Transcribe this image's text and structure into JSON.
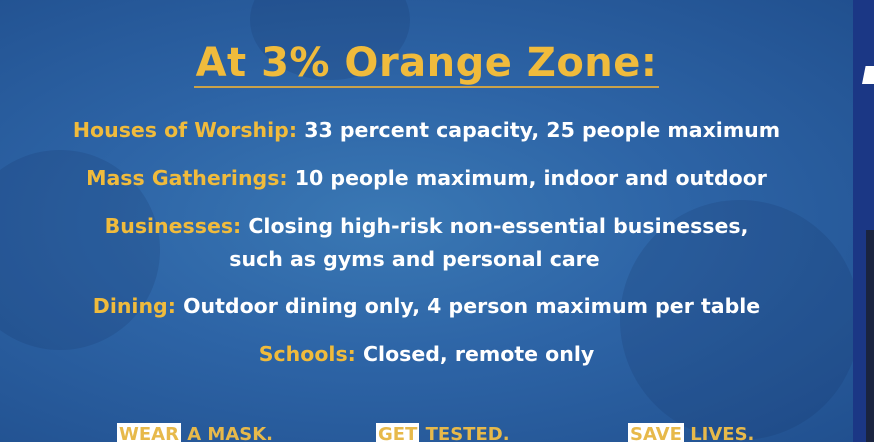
{
  "title": "At 3% Orange Zone:",
  "items": [
    {
      "label": "Houses of Worship:",
      "text": "33 percent capacity, 25 people maximum"
    },
    {
      "label": "Mass Gatherings:",
      "text": "10 people maximum, indoor and outdoor"
    },
    {
      "label": "Businesses:",
      "text": "Closing high-risk non-essential businesses,",
      "text2": "such as gyms and personal care"
    },
    {
      "label": "Dining:",
      "text": "Outdoor dining only, 4 person maximum per table"
    },
    {
      "label": "Schools:",
      "text": "Closed, remote only"
    }
  ],
  "taglines": [
    {
      "boxed": "WEAR",
      "rest": "A MASK."
    },
    {
      "boxed": "GET",
      "rest": "TESTED."
    },
    {
      "boxed": "SAVE",
      "rest": "LIVES."
    }
  ],
  "colors": {
    "accent": "#f0bb3c",
    "background": "#2d64a6"
  }
}
